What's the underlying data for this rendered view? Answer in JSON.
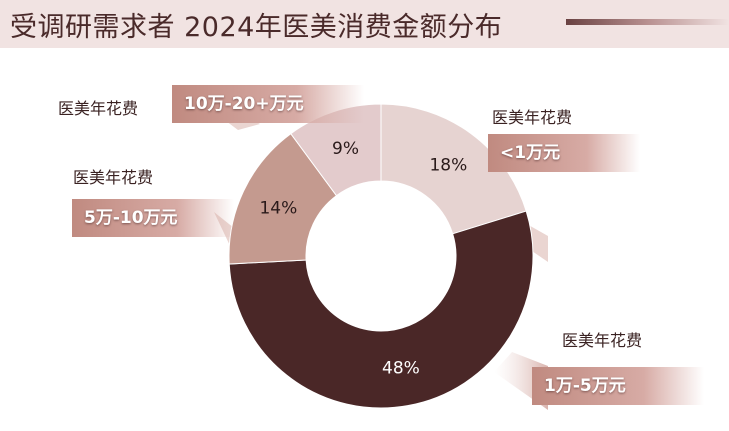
{
  "title": "受调研需求者 2024年医美消费金额分布",
  "colors": {
    "title_bar": "#f1e3e2",
    "title_text": "#4a2a2a",
    "tag_strong": "#c08a80",
    "tag_light": "#d7aba5"
  },
  "chart_data": {
    "type": "pie",
    "donut": true,
    "slices": [
      {
        "label": "<1万元",
        "value": 18,
        "value_label": "18%",
        "color": "#e6d3d1",
        "text_color": "#2a1a1a"
      },
      {
        "label": "1万-5万元",
        "value": 48,
        "value_label": "48%",
        "color": "#4a2727",
        "text_color": "#ffffff"
      },
      {
        "label": "5万-10万元",
        "value": 14,
        "value_label": "14%",
        "color": "#c49a8f",
        "text_color": "#2a1a1a"
      },
      {
        "label": "10万-20+万元",
        "value": 9,
        "value_label": "9%",
        "color": "#e3cbcc",
        "text_color": "#2a1a1a"
      }
    ]
  },
  "category_labels": [
    "医美年花费",
    "医美年花费",
    "医美年花费",
    "医美年花费"
  ]
}
